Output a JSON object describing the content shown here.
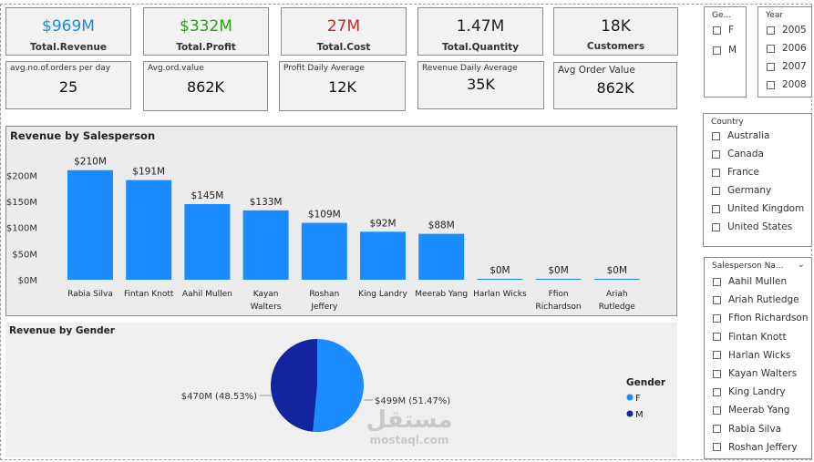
{
  "kpis": [
    {
      "value": "$969M",
      "label": "Total.Revenue",
      "color": "#1e88e5"
    },
    {
      "value": "$332M",
      "label": "Total.Profit",
      "color": "#2e9a1e"
    },
    {
      "value": "27M",
      "label": "Total.Cost",
      "color": "#c62828"
    },
    {
      "value": "1.47M",
      "label": "Total.Quantity",
      "color": "#222222"
    },
    {
      "value": "18K",
      "label": "Customers",
      "color": "#222222"
    }
  ],
  "kpis2": [
    {
      "label": "avg.no.of.orders per day",
      "value": "25"
    },
    {
      "label": "Avg.ord.value",
      "value": "862K"
    },
    {
      "label": "Profit Daily Average",
      "value": "12K"
    },
    {
      "label": "Revenue Daily Average",
      "value": "35K"
    },
    {
      "label": "Avg Order Value",
      "value": "862K"
    }
  ],
  "gender_slicer": {
    "title": "Ge...",
    "items": [
      "F",
      "M"
    ]
  },
  "year_slicer": {
    "title": "Year",
    "items": [
      "2005",
      "2006",
      "2007",
      "2008"
    ]
  },
  "country_slicer": {
    "title": "Country",
    "items": [
      "Australia",
      "Canada",
      "France",
      "Germany",
      "United Kingdom",
      "United States"
    ]
  },
  "salesperson_slicer": {
    "title": "Salesperson Na...",
    "items": [
      "Aahil Mullen",
      "Ariah Rutledge",
      "Ffion Richardson",
      "Fintan Knott",
      "Harlan Wicks",
      "Kayan Walters",
      "King Landry",
      "Meerab Yang",
      "Rabia Silva",
      "Roshan Jeffery"
    ]
  },
  "chart_data": [
    {
      "type": "bar",
      "title": "Revenue by Salesperson",
      "categories": [
        "Rabia Silva",
        "Fintan Knott",
        "Aahil Mullen",
        "Kayan Walters",
        "Roshan Jeffery",
        "King Landry",
        "Meerab Yang",
        "Harlan Wicks",
        "Ffion Richardson",
        "Ariah Rutledge"
      ],
      "category_lines": [
        [
          "Rabia Silva"
        ],
        [
          "Fintan Knott"
        ],
        [
          "Aahil Mullen"
        ],
        [
          "Kayan",
          "Walters"
        ],
        [
          "Roshan",
          "Jeffery"
        ],
        [
          "King Landry"
        ],
        [
          "Meerab Yang"
        ],
        [
          "Harlan Wicks"
        ],
        [
          "Ffion",
          "Richardson"
        ],
        [
          "Ariah",
          "Rutledge"
        ]
      ],
      "values": [
        210,
        191,
        145,
        133,
        109,
        92,
        88,
        0.3,
        0.3,
        0.3
      ],
      "data_labels": [
        "$210M",
        "$191M",
        "$145M",
        "$133M",
        "$109M",
        "$92M",
        "$88M",
        "$0M",
        "$0M",
        "$0M"
      ],
      "yticks": [
        0,
        50,
        100,
        150,
        200
      ],
      "ytick_labels": [
        "$0M",
        "$50M",
        "$100M",
        "$150M",
        "$200M"
      ],
      "ylim": [
        0,
        220
      ],
      "color": "#1a8cff",
      "grid": false
    },
    {
      "type": "pie",
      "title": "Revenue by Gender",
      "legend_title": "Gender",
      "legend_position": "right",
      "slices": [
        {
          "name": "F",
          "value": 499,
          "label": "$499M (51.47%)",
          "color": "#1a8cff"
        },
        {
          "name": "M",
          "value": 470,
          "label": "$470M (48.53%)",
          "color": "#12239e"
        }
      ]
    }
  ],
  "watermark": {
    "arabic": "مستقل",
    "latin": "mostaql.com"
  }
}
